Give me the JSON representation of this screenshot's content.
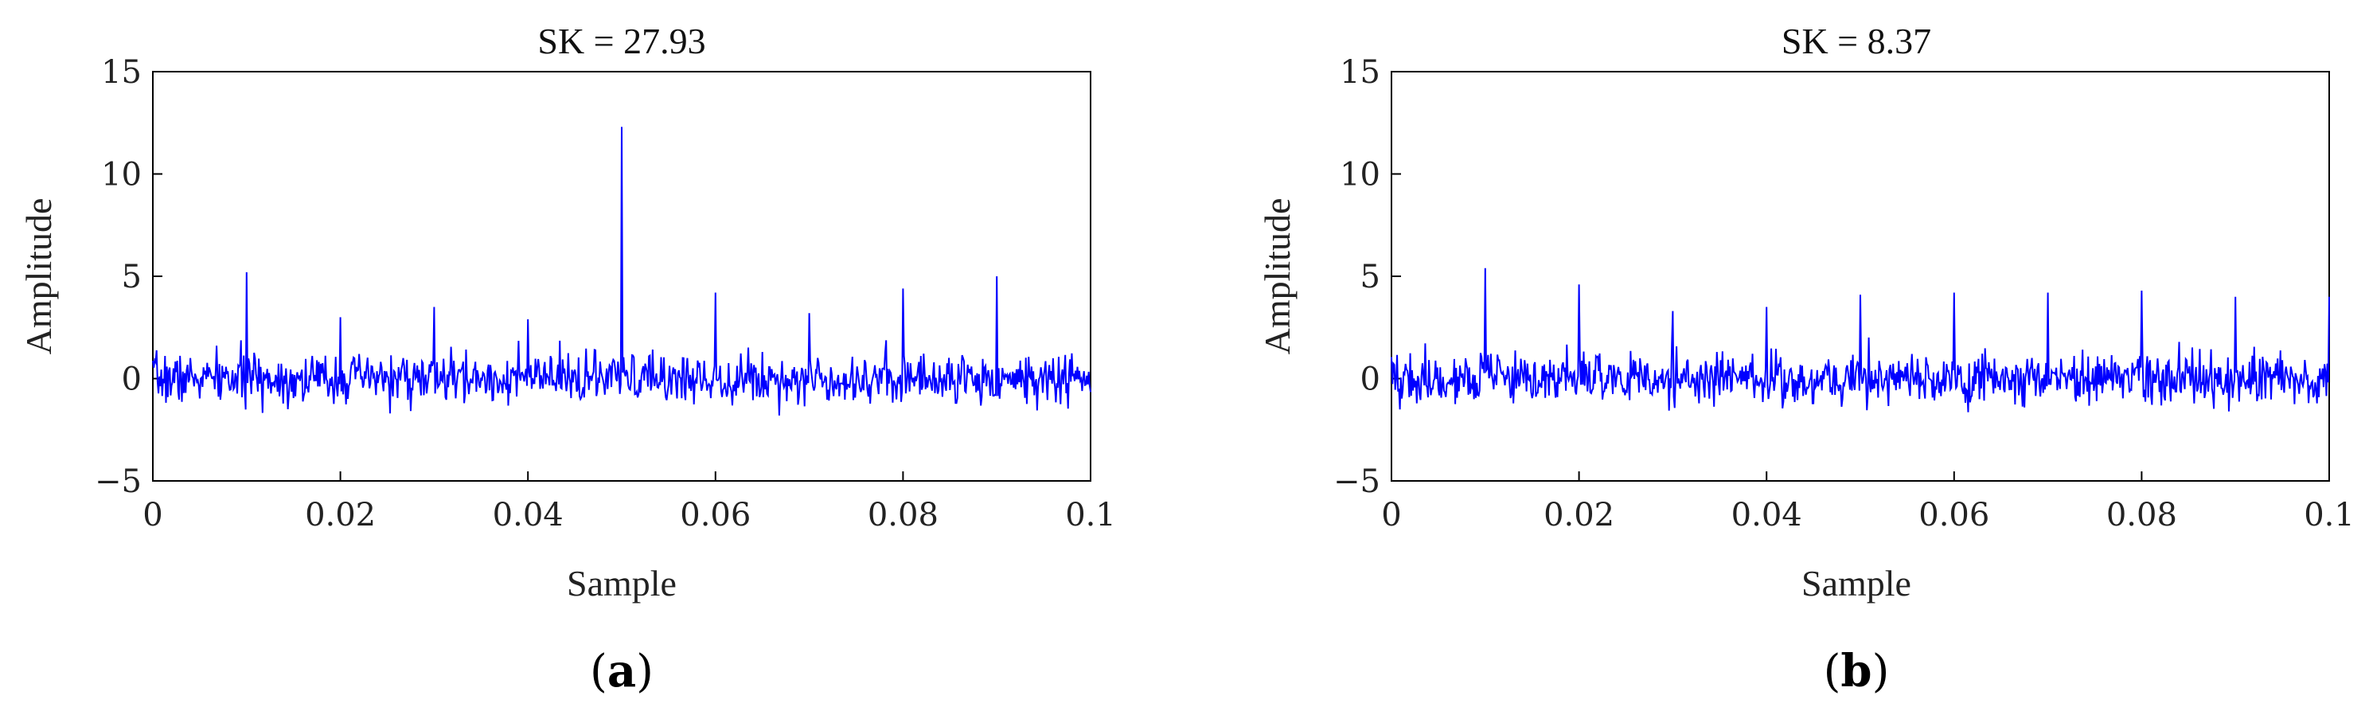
{
  "chart_data": [
    {
      "type": "line",
      "panel_label": "a",
      "title": "SK = 27.93",
      "xlabel": "Sample",
      "ylabel": "Amplitude",
      "xlim": [
        0,
        0.1
      ],
      "ylim": [
        -5,
        15
      ],
      "xticks": [
        0,
        0.02,
        0.04,
        0.06,
        0.08,
        0.1
      ],
      "xtick_labels": [
        "0",
        "0.02",
        "0.04",
        "0.06",
        "0.08",
        "0.1"
      ],
      "yticks": [
        -5,
        0,
        5,
        10,
        15
      ],
      "ytick_labels": [
        "−5",
        "0",
        "5",
        "10",
        "15"
      ],
      "noise": {
        "samples": 1000,
        "amplitude": 1.0,
        "seed": 7
      },
      "impulses": [
        {
          "x": 0.01,
          "y": 5.2
        },
        {
          "x": 0.02,
          "y": 3.0
        },
        {
          "x": 0.03,
          "y": 3.5
        },
        {
          "x": 0.04,
          "y": 2.9
        },
        {
          "x": 0.05,
          "y": 12.3
        },
        {
          "x": 0.06,
          "y": 4.2
        },
        {
          "x": 0.07,
          "y": 3.2
        },
        {
          "x": 0.08,
          "y": 4.4
        },
        {
          "x": 0.09,
          "y": 5.0
        }
      ]
    },
    {
      "type": "line",
      "panel_label": "b",
      "title": "SK = 8.37",
      "xlabel": "Sample",
      "ylabel": "Amplitude",
      "xlim": [
        0,
        0.1
      ],
      "ylim": [
        -5,
        15
      ],
      "xticks": [
        0,
        0.02,
        0.04,
        0.06,
        0.08,
        0.1
      ],
      "xtick_labels": [
        "0",
        "0.02",
        "0.04",
        "0.06",
        "0.08",
        "0.1"
      ],
      "yticks": [
        -5,
        0,
        5,
        10,
        15
      ],
      "ytick_labels": [
        "−5",
        "0",
        "5",
        "10",
        "15"
      ],
      "noise": {
        "samples": 1000,
        "amplitude": 1.05,
        "seed": 19
      },
      "impulses": [
        {
          "x": 0.01,
          "y": 5.4
        },
        {
          "x": 0.02,
          "y": 4.6
        },
        {
          "x": 0.03,
          "y": 3.3
        },
        {
          "x": 0.04,
          "y": 3.5
        },
        {
          "x": 0.05,
          "y": 4.1
        },
        {
          "x": 0.06,
          "y": 4.2
        },
        {
          "x": 0.07,
          "y": 4.2
        },
        {
          "x": 0.08,
          "y": 4.3
        },
        {
          "x": 0.09,
          "y": 4.0
        },
        {
          "x": 0.1,
          "y": 4.0
        }
      ]
    }
  ]
}
